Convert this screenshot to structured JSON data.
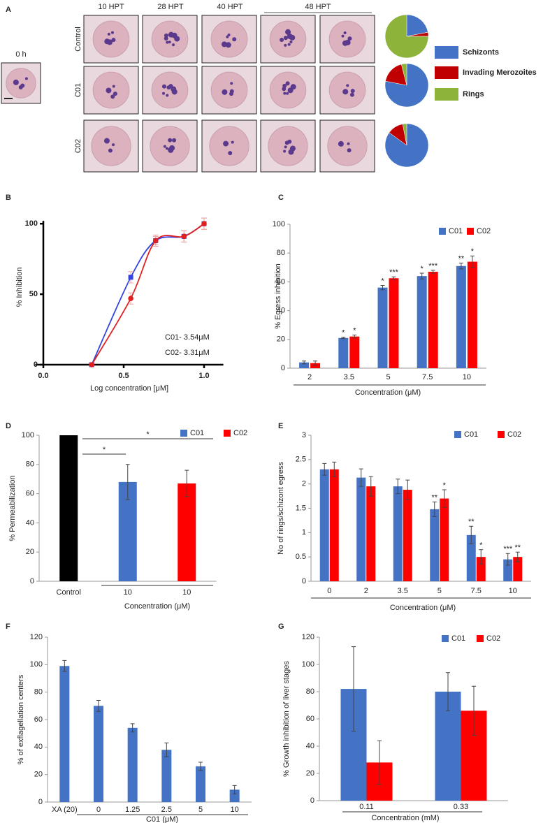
{
  "panel_a": {
    "panel": "A",
    "time_label": "0 h",
    "columns": [
      "10 HPT",
      "28 HPT",
      "40 HPT",
      "48 HPT"
    ],
    "rows": [
      "Control",
      "C01",
      "C02"
    ],
    "legend": [
      {
        "name": "Schizonts",
        "color": "#4472c4"
      },
      {
        "name": "Invading Merozoites",
        "color": "#c00000"
      },
      {
        "name": "Rings",
        "color": "#8db33a"
      }
    ]
  },
  "chart_data": [
    {
      "type": "pie",
      "values": [
        22,
        3,
        75
      ]
    },
    {
      "type": "pie",
      "values": [
        78,
        18,
        4
      ]
    },
    {
      "type": "pie",
      "values": [
        85,
        12,
        3
      ]
    },
    {
      "type": "scatter",
      "panel": "B",
      "ylabel": "% Inhibition",
      "xlabel": "Log concentration [μM]",
      "xlim": [
        -0.05,
        1.12
      ],
      "xticks": [
        {
          "value": 0,
          "label": "0.0"
        },
        {
          "value": 0.5,
          "label": "0.5"
        },
        {
          "value": 1,
          "label": "1.0"
        }
      ],
      "ylim": [
        0,
        110
      ],
      "yticks": [
        0,
        50,
        100
      ],
      "x": [
        0.301,
        0.544,
        0.699,
        0.875,
        1.0
      ],
      "series": [
        {
          "color": "#3344dd",
          "marker": "square",
          "values": [
            0,
            62,
            88,
            91,
            100
          ],
          "errors": [
            1,
            4,
            3,
            4,
            4
          ]
        },
        {
          "color": "#e02020",
          "marker": "circle",
          "values": [
            0,
            47,
            88,
            91,
            100
          ],
          "errors": [
            1,
            4,
            4,
            4,
            4
          ]
        }
      ],
      "annotations": [
        {
          "text": "C01- 3.54μM",
          "color": "#1e7fd0"
        },
        {
          "text": "C02- 3.31μM",
          "color": "#e02020"
        }
      ]
    },
    {
      "type": "bar",
      "panel": "C",
      "ylabel": "% Egress inhibition",
      "xlabel": "Concentration (μM)",
      "categories": [
        "2",
        "3.5",
        "5",
        "7.5",
        "10"
      ],
      "ylim": [
        0,
        100
      ],
      "yticks": [
        0,
        20,
        40,
        60,
        80,
        100
      ],
      "legend_position": "top right",
      "series": [
        {
          "name": "C01",
          "color": "#4472c4",
          "values": [
            4,
            21,
            56,
            64,
            71
          ],
          "errors": [
            1,
            0.5,
            1.5,
            2,
            2
          ],
          "significance": [
            null,
            "*",
            "*",
            "*",
            "**"
          ]
        },
        {
          "name": "C02",
          "color": "#ff0000",
          "values": [
            3.5,
            22,
            62.5,
            67,
            74
          ],
          "errors": [
            1.5,
            1,
            1,
            1,
            4
          ],
          "significance": [
            null,
            "*",
            "***",
            "***",
            "*"
          ]
        }
      ]
    },
    {
      "type": "bar",
      "panel": "D",
      "ylabel": "% Permeabilization",
      "xlabel": "Concentration (μM)",
      "categories": [
        "Control",
        "10",
        "10"
      ],
      "values": [
        100,
        68,
        67
      ],
      "colors": [
        "#000000",
        "#4472c4",
        "#ff0000"
      ],
      "errors": [
        null,
        12,
        9
      ],
      "ylim": [
        0,
        100
      ],
      "yticks": [
        0,
        20,
        40,
        60,
        80,
        100
      ],
      "legend": [
        {
          "name": "C01",
          "color": "#4472c4"
        },
        {
          "name": "C02",
          "color": "#ff0000"
        }
      ],
      "significance": [
        "*",
        "*"
      ]
    },
    {
      "type": "bar",
      "panel": "E",
      "ylabel": "No of rings/schizont egress",
      "xlabel": "Concentration (μM)",
      "categories": [
        "0",
        "2",
        "3.5",
        "5",
        "7.5",
        "10"
      ],
      "ylim": [
        0,
        3
      ],
      "yticks": [
        0,
        0.5,
        1,
        1.5,
        2,
        2.5,
        3
      ],
      "legend_position": "top right",
      "series": [
        {
          "name": "C01",
          "color": "#4472c4",
          "values": [
            2.3,
            2.13,
            1.95,
            1.48,
            0.95,
            0.45
          ],
          "errors": [
            0.12,
            0.18,
            0.15,
            0.15,
            0.18,
            0.12
          ],
          "significance": [
            null,
            null,
            null,
            "**",
            "**",
            "***"
          ]
        },
        {
          "name": "C02",
          "color": "#ff0000",
          "values": [
            2.3,
            1.95,
            1.88,
            1.7,
            0.5,
            0.5
          ],
          "errors": [
            0.15,
            0.2,
            0.2,
            0.18,
            0.15,
            0.1
          ],
          "significance": [
            null,
            null,
            null,
            "*",
            "*",
            "**"
          ]
        }
      ]
    },
    {
      "type": "bar",
      "panel": "F",
      "ylabel": "% of exflagellation centers",
      "xlabel": "C01 (μM)",
      "categories": [
        "XA (20)",
        "0",
        "1.25",
        "2.5",
        "5",
        "10"
      ],
      "values": [
        99,
        70,
        54,
        38,
        26,
        9
      ],
      "errors": [
        4,
        4,
        3,
        5,
        3,
        3
      ],
      "color": "#4472c4",
      "ylim": [
        0,
        120
      ],
      "yticks": [
        0,
        20,
        40,
        60,
        80,
        100,
        120
      ]
    },
    {
      "type": "bar",
      "panel": "G",
      "ylabel": "% Growth inhibition of liver stages",
      "xlabel": "Concentration (mM)",
      "categories": [
        "0.11",
        "0.33"
      ],
      "ylim": [
        0,
        120
      ],
      "yticks": [
        0,
        20,
        40,
        60,
        80,
        100,
        120
      ],
      "legend_position": "top right",
      "series": [
        {
          "name": "C01",
          "color": "#4472c4",
          "values": [
            82,
            80
          ],
          "errors": [
            31,
            14
          ]
        },
        {
          "name": "C02",
          "color": "#ff0000",
          "values": [
            28,
            66
          ],
          "errors": [
            16,
            18
          ]
        }
      ]
    }
  ]
}
